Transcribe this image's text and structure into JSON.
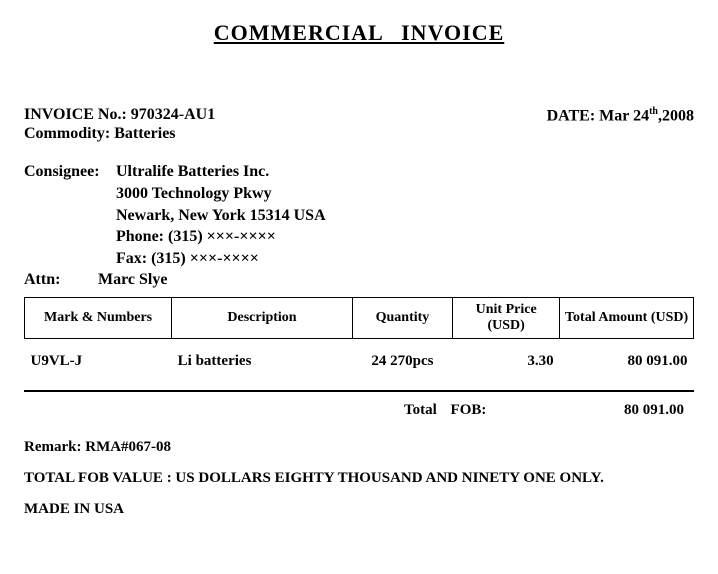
{
  "title": "COMMERCIAL   INVOICE",
  "invoice": {
    "no_label": "INVOICE No.:",
    "no_value": "970324-AU1",
    "date_label": "DATE:",
    "date_value_prefix": "Mar 24",
    "date_value_sup": "th",
    "date_value_suffix": ",2008",
    "commodity_label": "Commodity:",
    "commodity_value": "Batteries"
  },
  "consignee": {
    "label": "Consignee:",
    "name": "Ultralife   Batteries   Inc.",
    "addr1": "3000 Technology    Pkwy",
    "addr2": "Newark, New York    15314    USA",
    "phone": "Phone: (315)  ×××-××××",
    "fax": "Fax: (315) ×××-××××"
  },
  "attn": {
    "label": "Attn:",
    "value": "Marc Slye"
  },
  "table": {
    "headers": {
      "mark": "Mark   &   Numbers",
      "desc": "Description",
      "qty": "Quantity",
      "unit": "Unit   Price (USD)",
      "total": "Total   Amount (USD)"
    },
    "rows": [
      {
        "mark": "U9VL-J",
        "desc": "Li    batteries",
        "qty": "24 270pcs",
        "unit": "3.30",
        "total": "80 091.00"
      }
    ]
  },
  "totals": {
    "label": "Total    FOB:",
    "value": "80 091.00"
  },
  "remark": {
    "label": "Remark:",
    "value": "RMA#067-08"
  },
  "words": "TOTAL FOB VALUE : US DOLLARS EIGHTY THOUSAND AND NINETY ONE ONLY.",
  "made": "MADE IN USA"
}
